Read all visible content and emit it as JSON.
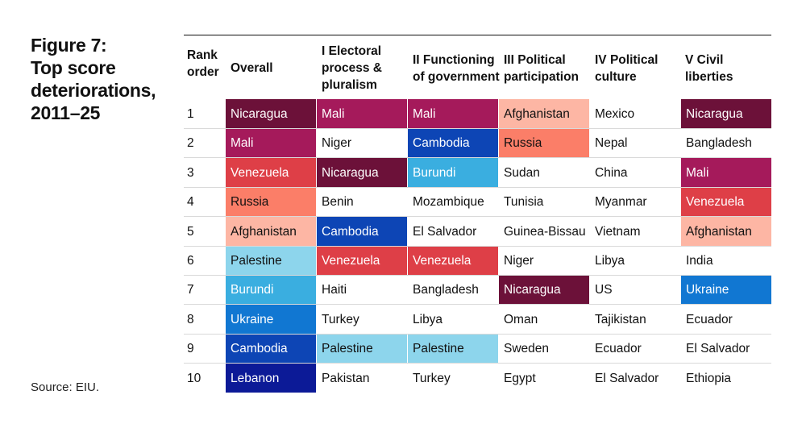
{
  "figure": {
    "label": "Figure 7:",
    "title_lines": [
      "Top score",
      "deteriorations,",
      "2011–25"
    ],
    "source": "Source: EIU."
  },
  "colors": {
    "Nicaragua": "#6c1139",
    "Mali": "#a51a5b",
    "Venezuela": "#de3f47",
    "Russia": "#fb7e68",
    "Afghanistan": "#fdb6a4",
    "Palestine": "#8dd5ec",
    "Burundi": "#3aaee0",
    "Ukraine": "#1177d2",
    "Cambodia": "#0d45b5",
    "Lebanon": "#0c1a97",
    "text_dark": "#111111",
    "text_light": "#ffffff"
  },
  "chart_data": {
    "type": "table",
    "title": "Figure 7: Top score deteriorations, 2011–25",
    "columns": [
      {
        "key": "rank",
        "header_lines": [
          "Rank",
          "order"
        ]
      },
      {
        "key": "overall",
        "header_lines": [
          "Overall"
        ]
      },
      {
        "key": "electoral",
        "header_lines": [
          "I Electoral",
          "process &",
          "pluralism"
        ]
      },
      {
        "key": "government",
        "header_lines": [
          "II Functioning",
          "of government"
        ]
      },
      {
        "key": "participation",
        "header_lines": [
          "III Political",
          "participation"
        ]
      },
      {
        "key": "culture",
        "header_lines": [
          "IV Political",
          "culture"
        ]
      },
      {
        "key": "liberties",
        "header_lines": [
          "V Civil",
          "liberties"
        ]
      }
    ],
    "rows": [
      [
        "1",
        "Nicaragua",
        "Mali",
        "Mali",
        "Afghanistan",
        "Mexico",
        "Nicaragua"
      ],
      [
        "2",
        "Mali",
        "Niger",
        "Cambodia",
        "Russia",
        "Nepal",
        "Bangladesh"
      ],
      [
        "3",
        "Venezuela",
        "Nicaragua",
        "Burundi",
        "Sudan",
        "China",
        "Mali"
      ],
      [
        "4",
        "Russia",
        "Benin",
        "Mozambique",
        "Tunisia",
        "Myanmar",
        "Venezuela"
      ],
      [
        "5",
        "Afghanistan",
        "Cambodia",
        "El Salvador",
        "Guinea-Bissau",
        "Vietnam",
        "Afghanistan"
      ],
      [
        "6",
        "Palestine",
        "Venezuela",
        "Venezuela",
        "Niger",
        "Libya",
        "India"
      ],
      [
        "7",
        "Burundi",
        "Haiti",
        "Bangladesh",
        "Nicaragua",
        "US",
        "Ukraine"
      ],
      [
        "8",
        "Ukraine",
        "Turkey",
        "Libya",
        "Oman",
        "Tajikistan",
        "Ecuador"
      ],
      [
        "9",
        "Cambodia",
        "Palestine",
        "Palestine",
        "Sweden",
        "Ecuador",
        "El Salvador"
      ],
      [
        "10",
        "Lebanon",
        "Pakistan",
        "Turkey",
        "Egypt",
        "El Salvador",
        "Ethiopia"
      ]
    ],
    "highlighted": [
      "Nicaragua",
      "Mali",
      "Venezuela",
      "Russia",
      "Afghanistan",
      "Palestine",
      "Burundi",
      "Ukraine",
      "Cambodia",
      "Lebanon"
    ],
    "light_text_countries": [
      "Nicaragua",
      "Mali",
      "Venezuela",
      "Burundi",
      "Ukraine",
      "Cambodia",
      "Lebanon"
    ]
  }
}
